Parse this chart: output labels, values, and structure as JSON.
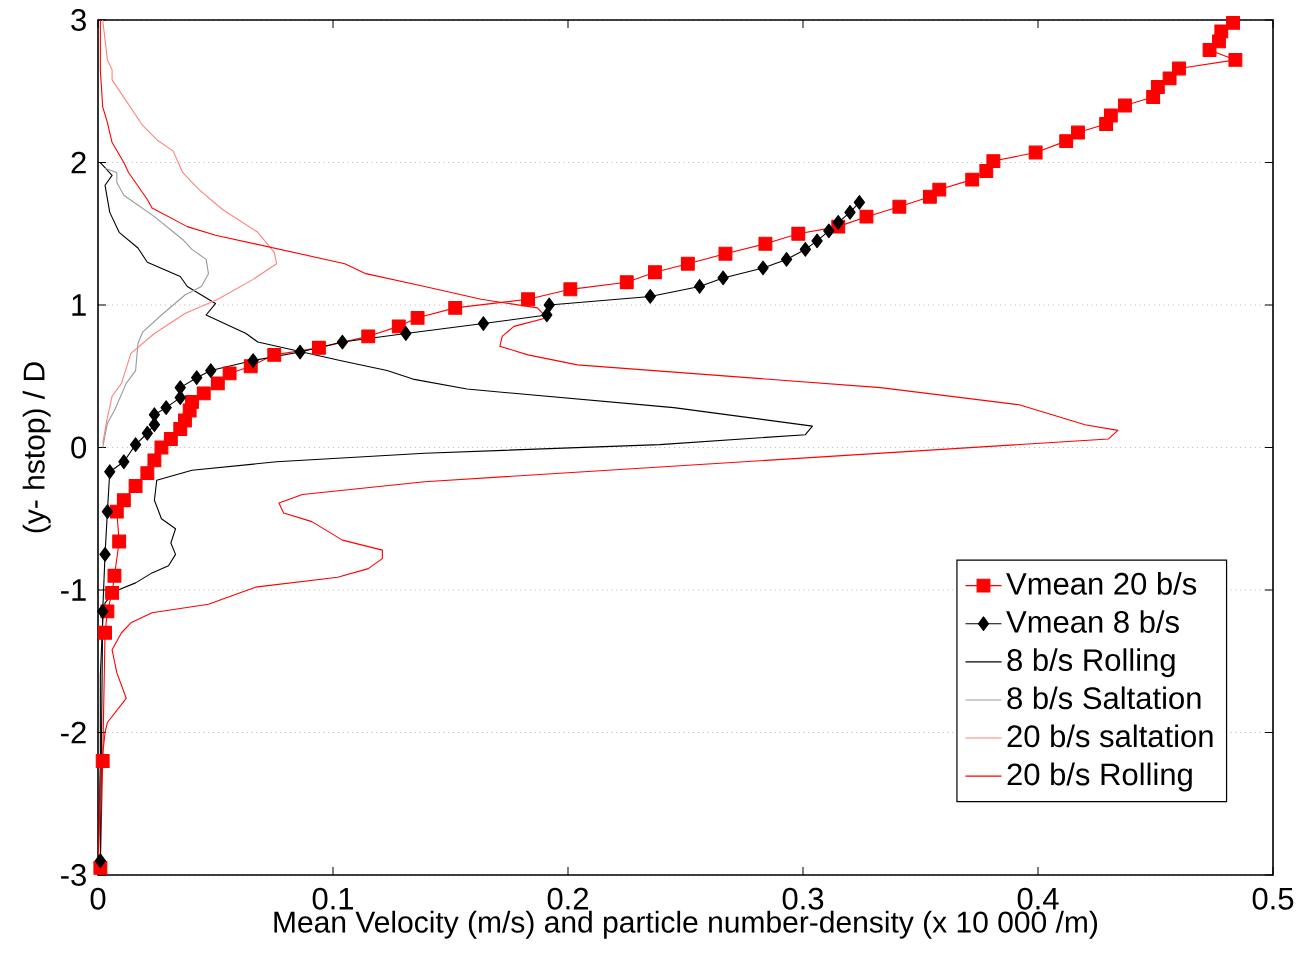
{
  "chart_data": {
    "type": "line",
    "xlabel": "Mean Velocity (m/s) and particle number-density (x 10 000 /m)",
    "ylabel": "(y- hstop) / D",
    "xlim": [
      0,
      0.5
    ],
    "ylim": [
      -3,
      3
    ],
    "xticks": [
      0,
      0.1,
      0.2,
      0.3,
      0.4,
      0.5
    ],
    "yticks": [
      -3,
      -2,
      -1,
      0,
      1,
      2,
      3
    ],
    "grid": "y",
    "legend": "bottom right",
    "series": [
      {
        "name": "Vmean 20 b/s",
        "color": "#ff0000",
        "marker": "square",
        "x": [
          0.001,
          0.002,
          0.003,
          0.004,
          0.006,
          0.007,
          0.009,
          0.008,
          0.011,
          0.016,
          0.021,
          0.024,
          0.027,
          0.031,
          0.035,
          0.037,
          0.039,
          0.04,
          0.045,
          0.051,
          0.056,
          0.065,
          0.075,
          0.094,
          0.115,
          0.128,
          0.136,
          0.152,
          0.183,
          0.201,
          0.225,
          0.237,
          0.251,
          0.267,
          0.284,
          0.298,
          0.315,
          0.327,
          0.341,
          0.354,
          0.358,
          0.372,
          0.378,
          0.381,
          0.399,
          0.412,
          0.417,
          0.429,
          0.431,
          0.437,
          0.449,
          0.451,
          0.456,
          0.46,
          0.484,
          0.473,
          0.477,
          0.478,
          0.483
        ],
        "values": [
          -2.95,
          -2.2,
          -1.3,
          -1.15,
          -1.02,
          -0.9,
          -0.66,
          -0.45,
          -0.37,
          -0.27,
          -0.18,
          -0.09,
          0.0,
          0.06,
          0.13,
          0.19,
          0.26,
          0.32,
          0.38,
          0.45,
          0.52,
          0.57,
          0.65,
          0.7,
          0.78,
          0.85,
          0.91,
          0.98,
          1.04,
          1.11,
          1.16,
          1.23,
          1.29,
          1.36,
          1.43,
          1.5,
          1.55,
          1.62,
          1.69,
          1.76,
          1.81,
          1.88,
          1.94,
          2.01,
          2.07,
          2.15,
          2.21,
          2.27,
          2.33,
          2.4,
          2.46,
          2.53,
          2.59,
          2.66,
          2.72,
          2.79,
          2.85,
          2.92,
          2.98
        ]
      },
      {
        "name": "Vmean 8 b/s",
        "color": "#000000",
        "marker": "diamond",
        "x": [
          0.001,
          0.002,
          0.003,
          0.004,
          0.005,
          0.011,
          0.016,
          0.021,
          0.024,
          0.024,
          0.029,
          0.035,
          0.035,
          0.042,
          0.048,
          0.066,
          0.086,
          0.104,
          0.131,
          0.164,
          0.191,
          0.192,
          0.235,
          0.256,
          0.266,
          0.283,
          0.293,
          0.301,
          0.306,
          0.311,
          0.315,
          0.32,
          0.324
        ],
        "values": [
          -2.9,
          -1.15,
          -0.75,
          -0.45,
          -0.17,
          -0.1,
          0.02,
          0.1,
          0.16,
          0.23,
          0.28,
          0.35,
          0.42,
          0.49,
          0.54,
          0.61,
          0.67,
          0.74,
          0.8,
          0.87,
          0.93,
          1.0,
          1.06,
          1.13,
          1.19,
          1.26,
          1.32,
          1.39,
          1.45,
          1.52,
          1.58,
          1.65,
          1.72
        ]
      },
      {
        "name": "8 b/s Rolling",
        "color": "#000000",
        "marker": "none",
        "x": [
          0.0,
          0.001,
          0.001,
          0.002,
          0.003,
          0.007,
          0.016,
          0.023,
          0.03,
          0.033,
          0.031,
          0.033,
          0.027,
          0.024,
          0.025,
          0.04,
          0.076,
          0.139,
          0.239,
          0.301,
          0.304,
          0.245,
          0.157,
          0.134,
          0.123,
          0.103,
          0.068,
          0.063,
          0.046,
          0.05,
          0.038,
          0.035,
          0.021,
          0.017,
          0.009,
          0.005,
          0.003,
          0.006,
          0.001
        ],
        "values": [
          -3.0,
          -2.2,
          -1.6,
          -1.21,
          -1.09,
          -1.01,
          -0.95,
          -0.88,
          -0.83,
          -0.75,
          -0.67,
          -0.57,
          -0.5,
          -0.37,
          -0.23,
          -0.16,
          -0.1,
          -0.04,
          0.02,
          0.09,
          0.15,
          0.28,
          0.41,
          0.48,
          0.54,
          0.61,
          0.74,
          0.8,
          0.93,
          1.01,
          1.13,
          1.2,
          1.3,
          1.4,
          1.51,
          1.65,
          1.84,
          1.91,
          2.0
        ]
      },
      {
        "name": "8 b/s Saltation",
        "color": "#999999",
        "marker": "none",
        "x": [
          0.002,
          0.004,
          0.007,
          0.012,
          0.016,
          0.017,
          0.019,
          0.027,
          0.037,
          0.044,
          0.047,
          0.046,
          0.04,
          0.036,
          0.024,
          0.011,
          0.008,
          0.008,
          0.003
        ],
        "values": [
          0.0,
          0.17,
          0.26,
          0.45,
          0.54,
          0.73,
          0.81,
          0.93,
          1.07,
          1.13,
          1.22,
          1.32,
          1.39,
          1.46,
          1.62,
          1.77,
          1.86,
          1.93,
          1.96
        ]
      },
      {
        "name": "20 b/s saltation",
        "color": "#ff8080",
        "marker": "none",
        "x": [
          0.002,
          0.004,
          0.006,
          0.01,
          0.014,
          0.024,
          0.037,
          0.051,
          0.066,
          0.076,
          0.075,
          0.068,
          0.053,
          0.043,
          0.036,
          0.032,
          0.025,
          0.019,
          0.006,
          0.006,
          0.004,
          0.002
        ],
        "values": [
          0.03,
          0.21,
          0.36,
          0.45,
          0.66,
          0.8,
          0.94,
          1.04,
          1.18,
          1.29,
          1.37,
          1.51,
          1.67,
          1.81,
          1.93,
          2.08,
          2.16,
          2.26,
          2.58,
          2.65,
          2.72,
          3.0
        ]
      },
      {
        "name": "20 b/s Rolling",
        "color": "#ff0000",
        "marker": "none",
        "x": [
          0.0,
          0.001,
          0.003,
          0.004,
          0.012,
          0.008,
          0.006,
          0.01,
          0.014,
          0.023,
          0.047,
          0.067,
          0.102,
          0.115,
          0.121,
          0.121,
          0.104,
          0.091,
          0.079,
          0.077,
          0.087,
          0.139,
          0.43,
          0.434,
          0.42,
          0.392,
          0.333,
          0.204,
          0.183,
          0.171,
          0.172,
          0.177,
          0.191,
          0.187,
          0.163,
          0.139,
          0.114,
          0.105,
          0.05,
          0.038,
          0.023,
          0.021,
          0.013,
          0.011,
          0.006,
          0.004,
          0.002,
          0.001,
          0.001
        ],
        "values": [
          -3.0,
          -2.3,
          -2.0,
          -1.93,
          -1.76,
          -1.58,
          -1.42,
          -1.3,
          -1.23,
          -1.16,
          -1.1,
          -0.98,
          -0.91,
          -0.85,
          -0.78,
          -0.72,
          -0.65,
          -0.52,
          -0.46,
          -0.39,
          -0.33,
          -0.24,
          0.06,
          0.12,
          0.16,
          0.3,
          0.42,
          0.58,
          0.65,
          0.71,
          0.78,
          0.85,
          0.91,
          0.98,
          1.04,
          1.13,
          1.22,
          1.29,
          1.49,
          1.55,
          1.68,
          1.74,
          1.93,
          2.0,
          2.14,
          2.28,
          2.39,
          2.65,
          3.0
        ]
      }
    ]
  }
}
